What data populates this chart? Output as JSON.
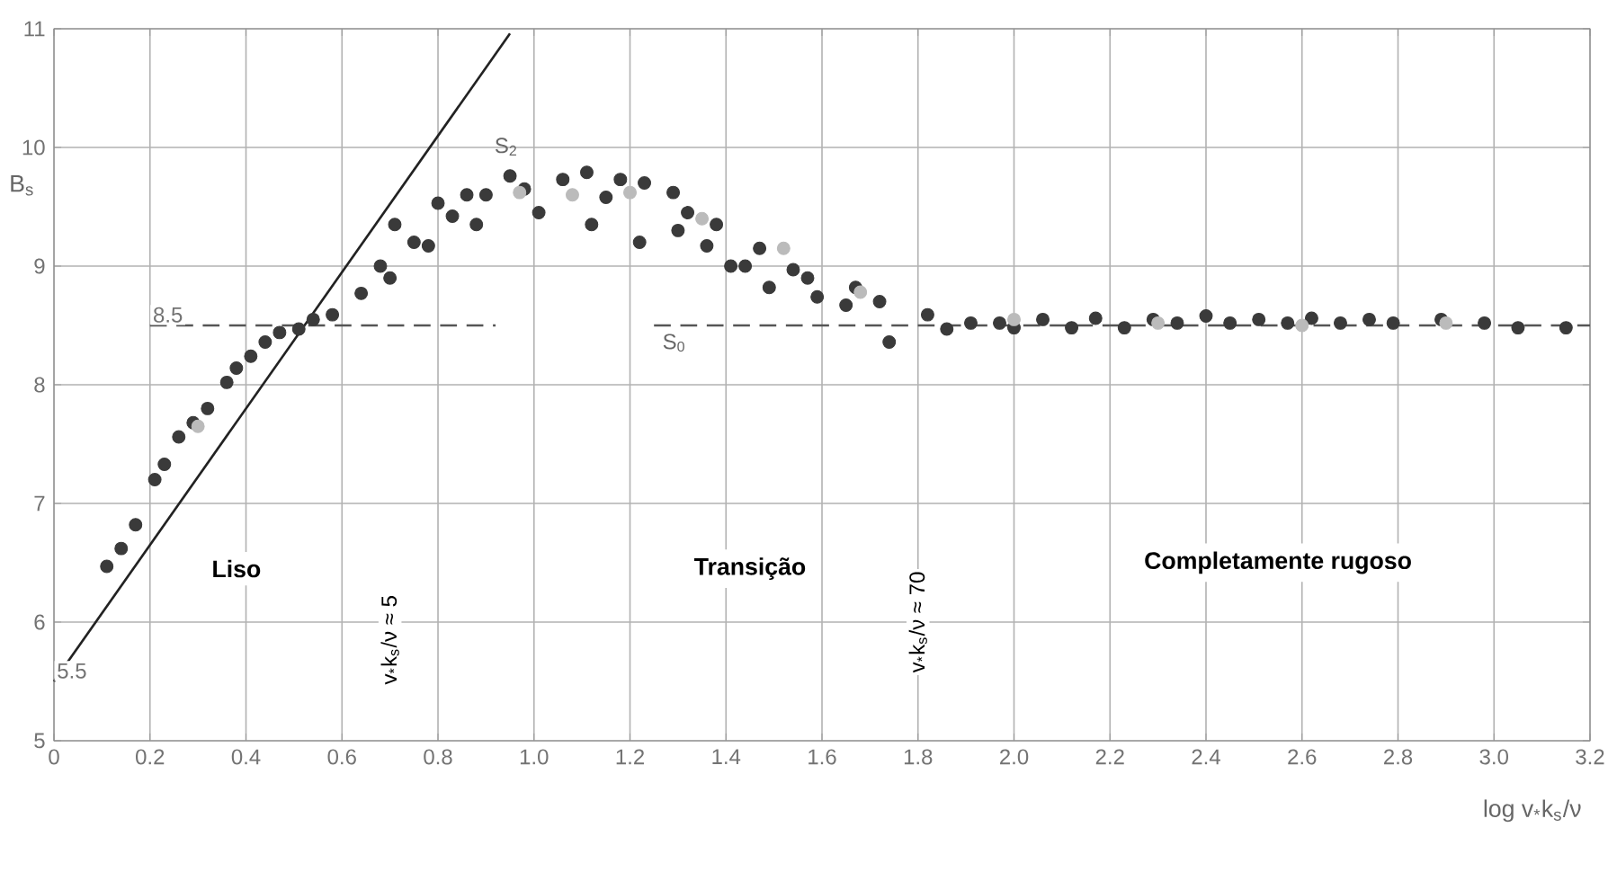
{
  "chart_data": {
    "type": "scatter",
    "ylabel": "B$_{s}$",
    "xlabel": "log v$_{*}$k$_{s}$/ν",
    "xlim": [
      0,
      3.2
    ],
    "ylim": [
      5,
      11
    ],
    "xticks": [
      0,
      0.2,
      0.4,
      0.6,
      0.8,
      {
        "value": 1.0,
        "label": "1.0"
      },
      1.2,
      1.4,
      1.6,
      1.8,
      {
        "value": 2.0,
        "label": "2.0"
      },
      2.2,
      2.4,
      2.6,
      2.8,
      {
        "value": 3.0,
        "label": "3.0"
      },
      3.2
    ],
    "yticks": [
      5,
      6,
      7,
      8,
      9,
      10,
      11
    ],
    "grid": true,
    "legend": false,
    "annotations": [
      "Liso",
      "Transição",
      "Completamente rugoso",
      "v$_{*}$k$_{s}$/ν ≈ 5",
      "v$_{*}$k$_{s}$/ν ≈ 70",
      {
        "text": "5.5",
        "x": 0,
        "y": 5.5
      },
      {
        "text": "8.5",
        "x": 0.2,
        "y": 8.5
      }
    ],
    "series": [
      {
        "color": "#3a3a3a",
        "marker": "circle",
        "x": [
          0.11,
          0.14,
          0.17,
          0.21,
          0.23,
          0.26,
          0.29,
          0.32,
          0.36,
          0.38,
          0.41,
          0.44,
          0.47,
          0.51,
          0.54,
          0.58,
          0.64,
          0.68,
          0.7,
          0.71,
          0.75,
          0.78,
          0.8,
          0.83,
          0.86,
          0.88,
          0.9,
          0.95,
          0.98,
          1.01,
          1.06,
          1.11,
          1.12,
          1.15,
          1.18,
          1.22,
          1.23,
          1.29,
          1.3,
          1.32,
          1.36,
          1.38,
          1.41,
          1.44,
          1.47,
          1.49,
          1.54,
          1.57,
          1.59,
          1.65,
          1.67,
          1.72,
          1.74,
          1.82,
          1.86,
          1.91,
          1.97,
          2.0,
          2.06,
          2.12,
          2.17,
          2.23,
          2.29,
          2.34,
          2.4,
          2.45,
          2.51,
          2.57,
          2.62,
          2.68,
          2.74,
          2.79,
          2.89,
          2.98,
          3.05,
          3.15
        ],
        "values": [
          6.47,
          6.62,
          6.82,
          7.2,
          7.33,
          7.56,
          7.68,
          7.8,
          8.02,
          8.14,
          8.24,
          8.36,
          8.44,
          8.47,
          8.55,
          8.59,
          8.77,
          9.0,
          8.9,
          9.35,
          9.2,
          9.17,
          9.53,
          9.42,
          9.6,
          9.35,
          9.6,
          9.76,
          9.65,
          9.45,
          9.73,
          9.79,
          9.35,
          9.58,
          9.73,
          9.2,
          9.7,
          9.62,
          9.3,
          9.45,
          9.17,
          9.35,
          9.0,
          9.0,
          9.15,
          8.82,
          8.97,
          8.9,
          8.74,
          8.67,
          8.82,
          8.7,
          8.36,
          8.59,
          8.47,
          8.52,
          8.52,
          8.48,
          8.55,
          8.48,
          8.56,
          8.48,
          8.55,
          8.52,
          8.58,
          8.52,
          8.55,
          8.52,
          8.56,
          8.52,
          8.55,
          8.52,
          8.55,
          8.52,
          8.48,
          8.48
        ]
      },
      {
        "color": "#bbbbbb",
        "marker": "circle",
        "x": [
          0.3,
          0.97,
          1.08,
          1.2,
          1.35,
          1.52,
          1.68,
          2.0,
          2.3,
          2.6,
          2.9
        ],
        "values": [
          7.65,
          9.62,
          9.6,
          9.62,
          9.4,
          9.15,
          8.78,
          8.55,
          8.52,
          8.5,
          8.52
        ]
      },
      {
        "type": "line",
        "name": "S$_{2}$",
        "color": "#222222",
        "line_style": "solid",
        "marker": "none",
        "x": [
          0,
          0.95
        ],
        "values": [
          5.5,
          10.96
        ]
      },
      {
        "type": "line",
        "name": "S$_{0}$",
        "color": "#555555",
        "line_style": "dashed",
        "marker": "none",
        "x": [
          0.2,
          0.92,
          1.0,
          1.25,
          3.2
        ],
        "values": [
          8.5,
          8.5,
          null,
          8.5,
          8.5
        ]
      }
    ]
  }
}
